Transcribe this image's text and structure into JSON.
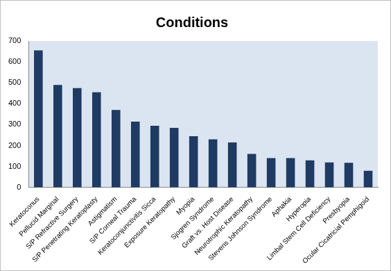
{
  "chart_data": {
    "type": "bar",
    "title": "Conditions",
    "categories": [
      "Keratoconus",
      "Pellucid Marginal",
      "S/P Refractive Surgery",
      "S/P Penetrating Keratoplasty",
      "Astigmatism",
      "S/P Corneal Trauma",
      "Keratoconjunctivitis Sicca",
      "Exposure Keratopathy",
      "Myopia",
      "Sjogren Syndrome",
      "Graft vs. Host Disease",
      "Neurotrophic Keratopathy",
      "Stevens Johnson Syndrome",
      "Aphakia",
      "Hyperopia",
      "Limbal Stem Cell Deficiency",
      "Presbyopia",
      "Ocular Cicatricial Pemphigoid"
    ],
    "values": [
      655,
      490,
      475,
      455,
      370,
      315,
      295,
      285,
      245,
      230,
      215,
      160,
      140,
      140,
      130,
      120,
      118,
      80
    ],
    "color": "#1f3b63",
    "ylim": [
      0,
      700
    ],
    "yticks": [
      0,
      100,
      200,
      300,
      400,
      500,
      600,
      700
    ],
    "grid": false
  }
}
